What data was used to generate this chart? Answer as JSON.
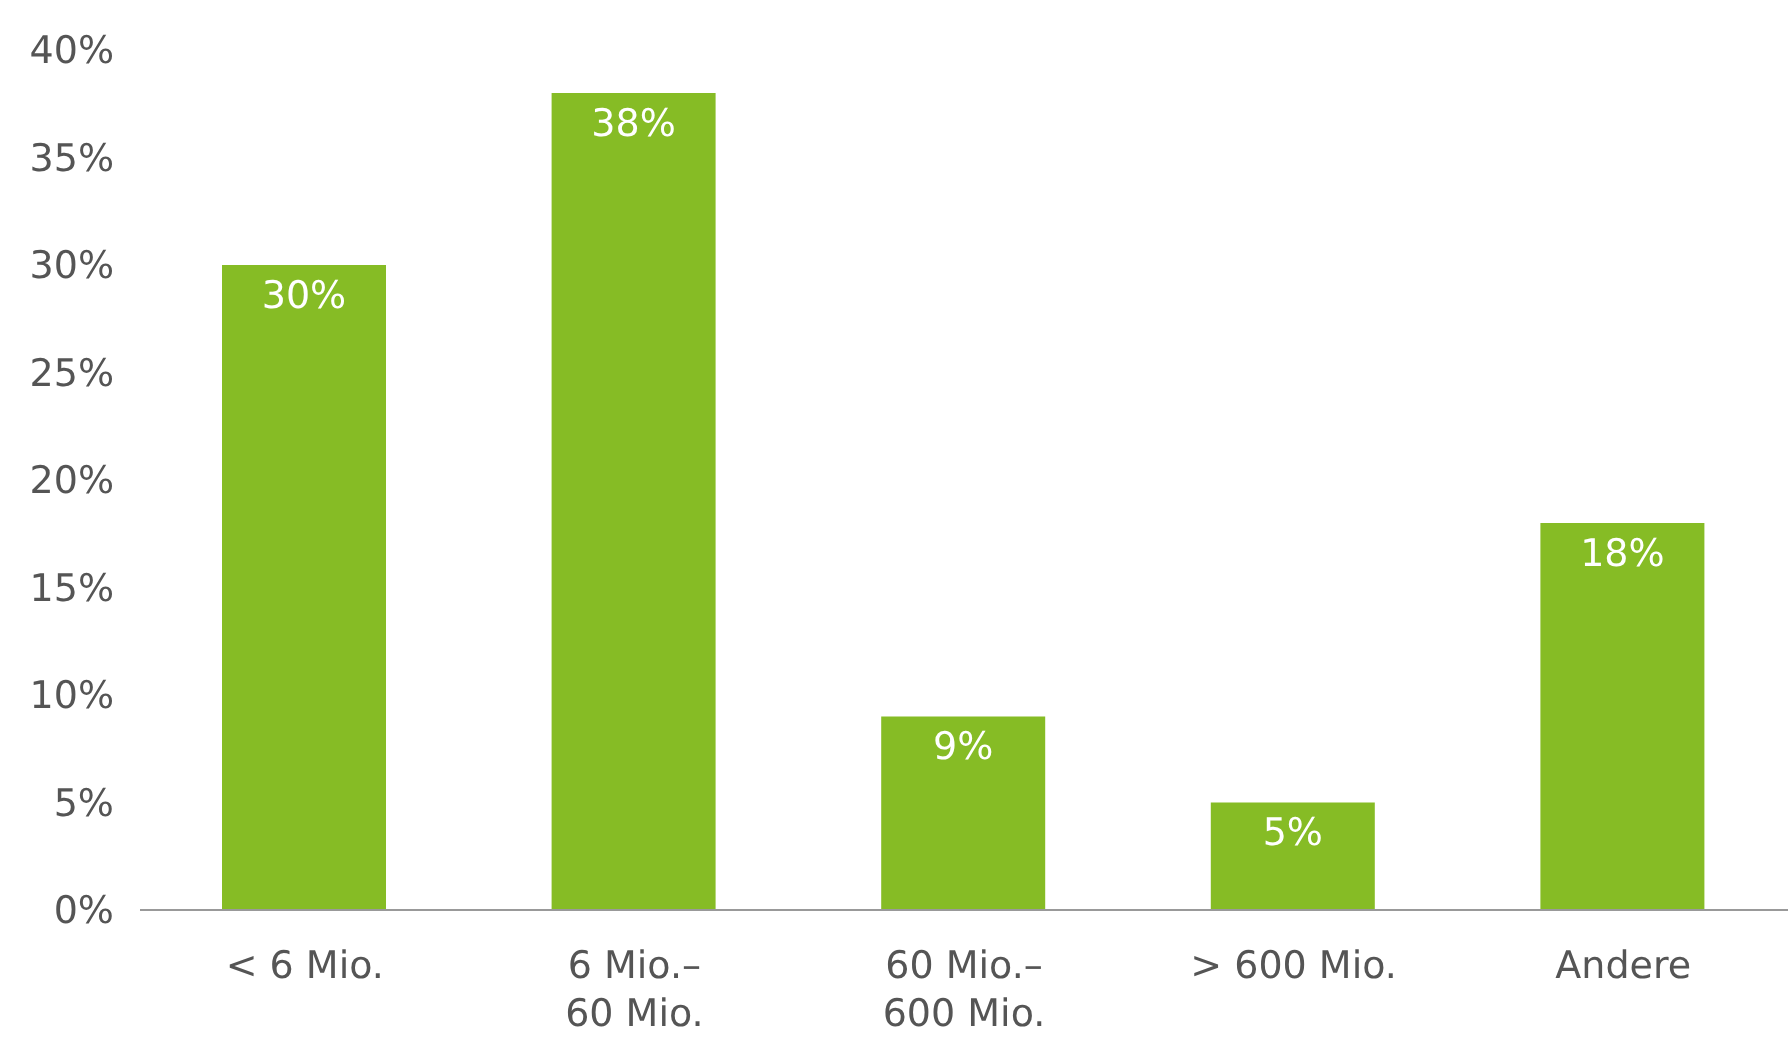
{
  "chart_data": {
    "type": "bar",
    "categories": [
      "< 6 Mio.",
      "6 Mio.–\n60 Mio.",
      "60 Mio.–\n600 Mio.",
      "> 600 Mio.",
      "Andere"
    ],
    "values": [
      30,
      38,
      9,
      5,
      18
    ],
    "color": "#86bc25",
    "ylim": [
      0,
      40
    ],
    "yticks": [
      {
        "value": 0,
        "label": "0%"
      },
      {
        "value": 5,
        "label": "5%"
      },
      {
        "value": 10,
        "label": "10%"
      },
      {
        "value": 15,
        "label": "15%"
      },
      {
        "value": 20,
        "label": "20%"
      },
      {
        "value": 25,
        "label": "25%"
      },
      {
        "value": 30,
        "label": "30%"
      },
      {
        "value": 35,
        "label": "35%"
      },
      {
        "value": 40,
        "label": "40%"
      }
    ],
    "value_labels": [
      "30%",
      "38%",
      "9%",
      "5%",
      "18%"
    ],
    "grid": false,
    "legend": false
  }
}
